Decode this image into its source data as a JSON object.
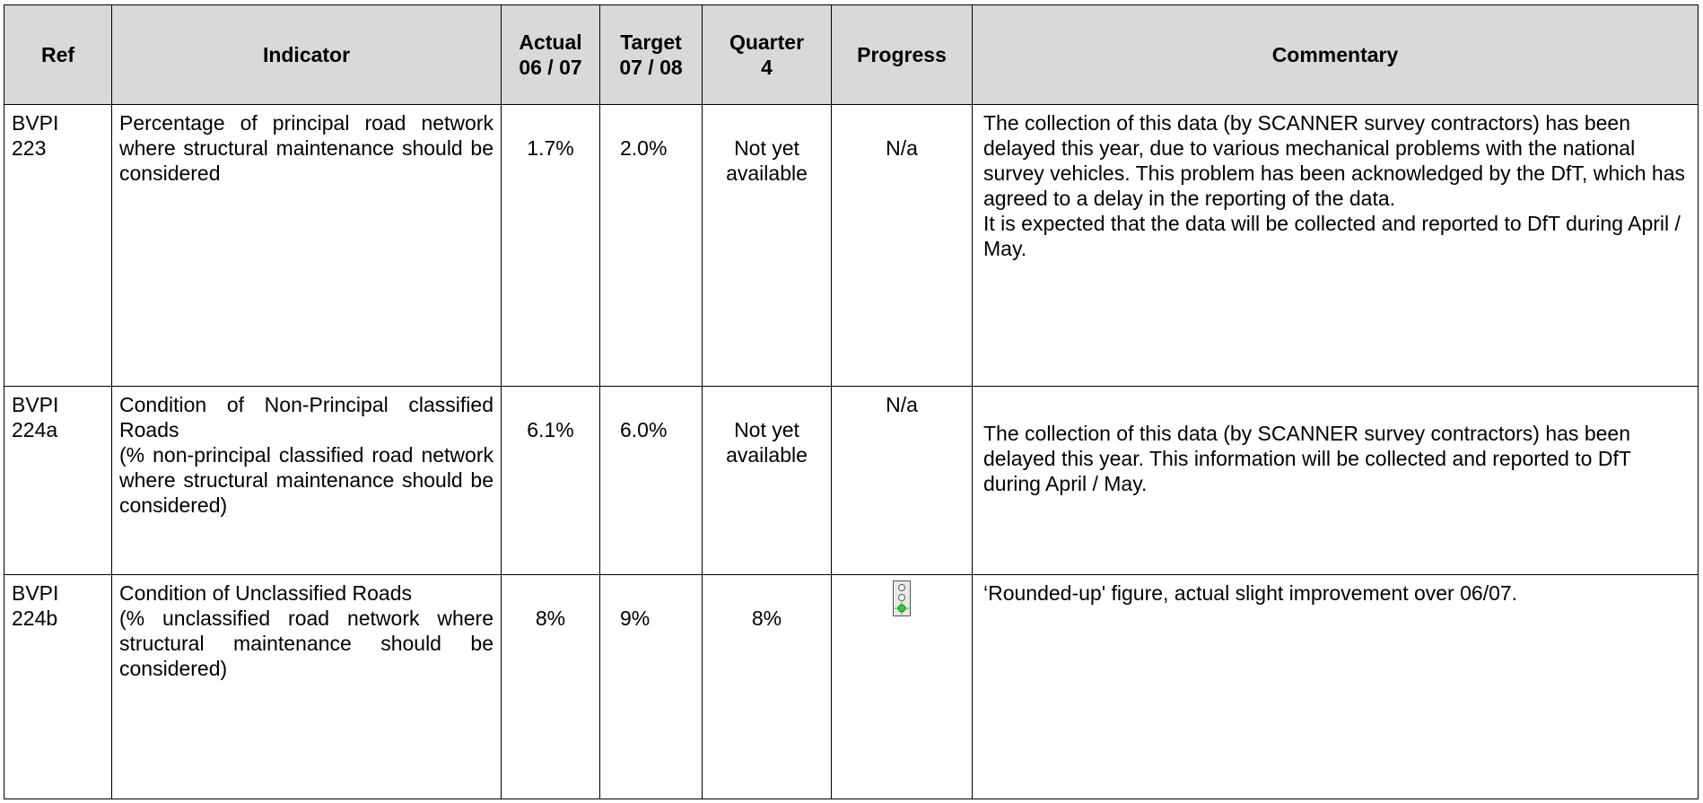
{
  "table": {
    "header": [
      "Ref",
      "Indicator",
      "Actual 06 / 07",
      "Target 07 / 08",
      "Quarter 4",
      "Progress",
      "Commentary"
    ],
    "rows": [
      {
        "ref": "BVPI 223",
        "indicator": "Percentage of principal road network where structural maintenance should be considered",
        "actual": "1.7%",
        "target": "2.0%",
        "quarter": "Not yet available",
        "progress": "N/a",
        "commentary": [
          "The collection of this data (by SCANNER survey contractors) has been delayed this year, due to various mechanical problems with the national survey vehicles. This problem has been acknowledged by the DfT, which has agreed to a delay in the reporting of the data.",
          "It is expected that the data will be collected and reported to DfT during April / May."
        ]
      },
      {
        "ref": "BVPI 224a",
        "indicator": [
          "Condition of Non-Principal classified Roads",
          "(% non-principal classified road network where structural maintenance should be considered)"
        ],
        "actual": "6.1%",
        "target": "6.0%",
        "quarter": "Not yet available",
        "progress": "N/a",
        "commentary": [
          "The collection of this data (by SCANNER survey contractors) has been delayed this year.  This information will be collected and reported to DfT during April / May."
        ]
      },
      {
        "ref": "BVPI 224b",
        "indicator": [
          "Condition of Unclassified Roads",
          "(% unclassified road network where structural maintenance should be considered)"
        ],
        "actual": "8%",
        "target": "9%",
        "quarter": "8%",
        "commentary": [
          "‘Rounded-up' figure, actual slight improvement over 06/07."
        ]
      }
    ]
  }
}
